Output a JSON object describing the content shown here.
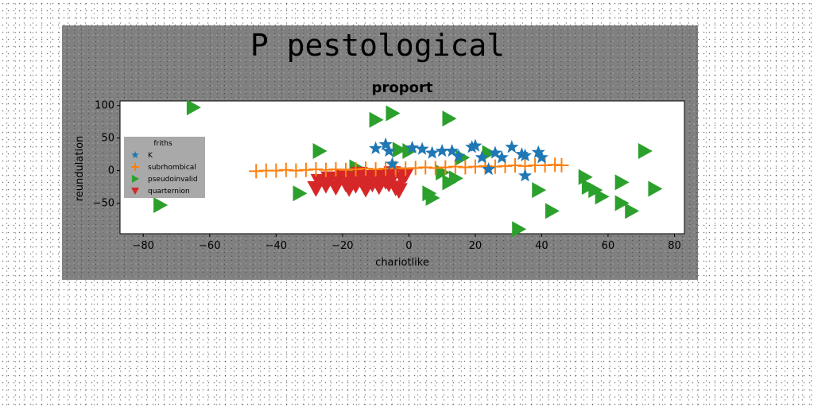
{
  "chart_data": {
    "type": "scatter",
    "suptitle": "P pestological",
    "title": "proport",
    "xlabel": "chariotlike",
    "ylabel": "reundulation",
    "xlim": [
      -87,
      83
    ],
    "ylim": [
      -97,
      107
    ],
    "xticks": [
      -80,
      -60,
      -40,
      -20,
      0,
      20,
      40,
      60,
      80
    ],
    "yticks": [
      100,
      50,
      0,
      -50
    ],
    "xtick_labels": [
      "−80",
      "−60",
      "−40",
      "−20",
      "0",
      "20",
      "40",
      "60",
      "80"
    ],
    "ytick_labels": [
      "100",
      "50",
      "0",
      "−50"
    ],
    "legend": {
      "title": "friths",
      "position": "center-left"
    },
    "series": [
      {
        "name": "K",
        "marker": "star",
        "color": "#1f77b4",
        "points": [
          [
            -10,
            34
          ],
          [
            -7,
            40
          ],
          [
            -6,
            30
          ],
          [
            -5,
            10
          ],
          [
            1,
            35
          ],
          [
            4,
            33
          ],
          [
            7,
            27
          ],
          [
            10,
            30
          ],
          [
            13,
            30
          ],
          [
            15,
            22
          ],
          [
            19,
            36
          ],
          [
            20,
            38
          ],
          [
            22,
            20
          ],
          [
            24,
            2
          ],
          [
            26,
            27
          ],
          [
            28,
            20
          ],
          [
            31,
            36
          ],
          [
            34,
            25
          ],
          [
            35,
            23
          ],
          [
            35,
            -8
          ],
          [
            39,
            28
          ],
          [
            40,
            20
          ]
        ]
      },
      {
        "name": "subrhombical",
        "marker": "plus",
        "color": "#ff7f0e",
        "points": [
          [
            -46,
            -1
          ],
          [
            -43,
            0
          ],
          [
            -40,
            0
          ],
          [
            -37,
            1
          ],
          [
            -34,
            0
          ],
          [
            -31,
            1
          ],
          [
            -28,
            2
          ],
          [
            -25,
            1
          ],
          [
            -22,
            2
          ],
          [
            -19,
            1
          ],
          [
            -16,
            2
          ],
          [
            -13,
            3
          ],
          [
            -10,
            2
          ],
          [
            -7,
            3
          ],
          [
            -4,
            4
          ],
          [
            -1,
            3
          ],
          [
            2,
            4
          ],
          [
            5,
            5
          ],
          [
            8,
            4
          ],
          [
            11,
            5
          ],
          [
            14,
            6
          ],
          [
            17,
            5
          ],
          [
            20,
            6
          ],
          [
            23,
            7
          ],
          [
            26,
            6
          ],
          [
            29,
            7
          ],
          [
            32,
            8
          ],
          [
            35,
            7
          ],
          [
            38,
            8
          ],
          [
            41,
            8
          ],
          [
            44,
            9
          ],
          [
            46,
            8
          ]
        ]
      },
      {
        "name": "pseudoinvalid",
        "marker": "triangle-right",
        "color": "#2ca02c",
        "points": [
          [
            -65,
            97
          ],
          [
            -75,
            -53
          ],
          [
            -33,
            -35
          ],
          [
            -27,
            30
          ],
          [
            -10,
            78
          ],
          [
            -5,
            88
          ],
          [
            -16,
            5
          ],
          [
            -3,
            32
          ],
          [
            0,
            30
          ],
          [
            6,
            -35
          ],
          [
            7,
            -42
          ],
          [
            10,
            -3
          ],
          [
            12,
            -18
          ],
          [
            12,
            80
          ],
          [
            14,
            -12
          ],
          [
            16,
            20
          ],
          [
            24,
            27
          ],
          [
            33,
            -90
          ],
          [
            39,
            -30
          ],
          [
            43,
            -62
          ],
          [
            53,
            -10
          ],
          [
            54,
            -25
          ],
          [
            56,
            -30
          ],
          [
            58,
            -40
          ],
          [
            64,
            -18
          ],
          [
            64,
            -50
          ],
          [
            67,
            -62
          ],
          [
            71,
            30
          ],
          [
            74,
            -28
          ]
        ]
      },
      {
        "name": "quarternion",
        "marker": "triangle-down",
        "color": "#d62728",
        "points": [
          [
            -28,
            -27
          ],
          [
            -27,
            -16
          ],
          [
            -25,
            -22
          ],
          [
            -24,
            -12
          ],
          [
            -22,
            -25
          ],
          [
            -21,
            -15
          ],
          [
            -20,
            -8
          ],
          [
            -19,
            -20
          ],
          [
            -18,
            -27
          ],
          [
            -17,
            -12
          ],
          [
            -16,
            -22
          ],
          [
            -15,
            -5
          ],
          [
            -14,
            -18
          ],
          [
            -13,
            -28
          ],
          [
            -12,
            -10
          ],
          [
            -11,
            -20
          ],
          [
            -10,
            -14
          ],
          [
            -9,
            -24
          ],
          [
            -8,
            -8
          ],
          [
            -7,
            -16
          ],
          [
            -6,
            -20
          ],
          [
            -5,
            -4
          ],
          [
            -4,
            -26
          ],
          [
            -3,
            -30
          ],
          [
            -2,
            -12
          ],
          [
            -1,
            -6
          ]
        ]
      }
    ]
  }
}
